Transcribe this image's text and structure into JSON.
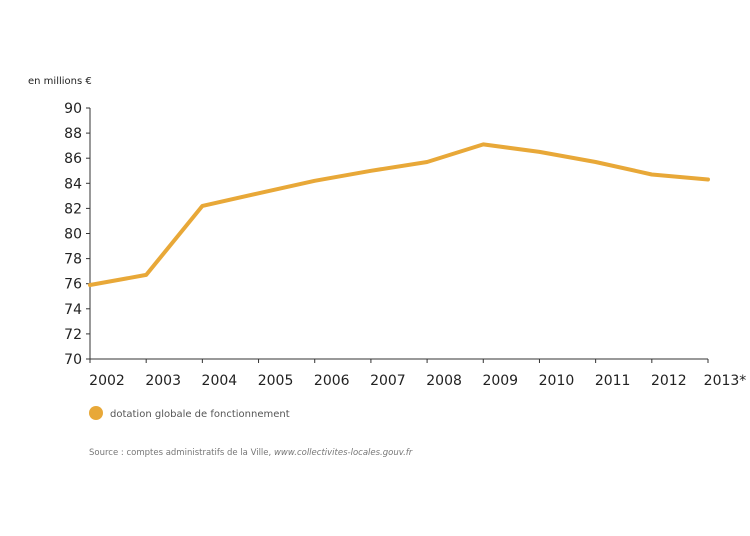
{
  "chart_data": {
    "type": "line",
    "unit_label": "en millions €",
    "categories": [
      "2002",
      "2003",
      "2004",
      "2005",
      "2006",
      "2007",
      "2008",
      "2009",
      "2010",
      "2011",
      "2012",
      "2013*"
    ],
    "series": [
      {
        "name": "dotation globale de fonctionnement",
        "color": "#E8A838",
        "values": [
          75.9,
          76.7,
          82.2,
          83.2,
          84.2,
          85.0,
          85.7,
          87.1,
          86.5,
          85.7,
          84.7,
          84.3
        ]
      }
    ],
    "ylim": [
      70,
      90
    ],
    "yticks": [
      "70",
      "72",
      "74",
      "76",
      "78",
      "80",
      "82",
      "84",
      "86",
      "88",
      "90"
    ],
    "grid": false,
    "legend_position": "bottom-left"
  },
  "source": {
    "prefix": "Source : comptes administratifs de la Ville, ",
    "link": "www.collectivites-locales.gouv.fr"
  }
}
